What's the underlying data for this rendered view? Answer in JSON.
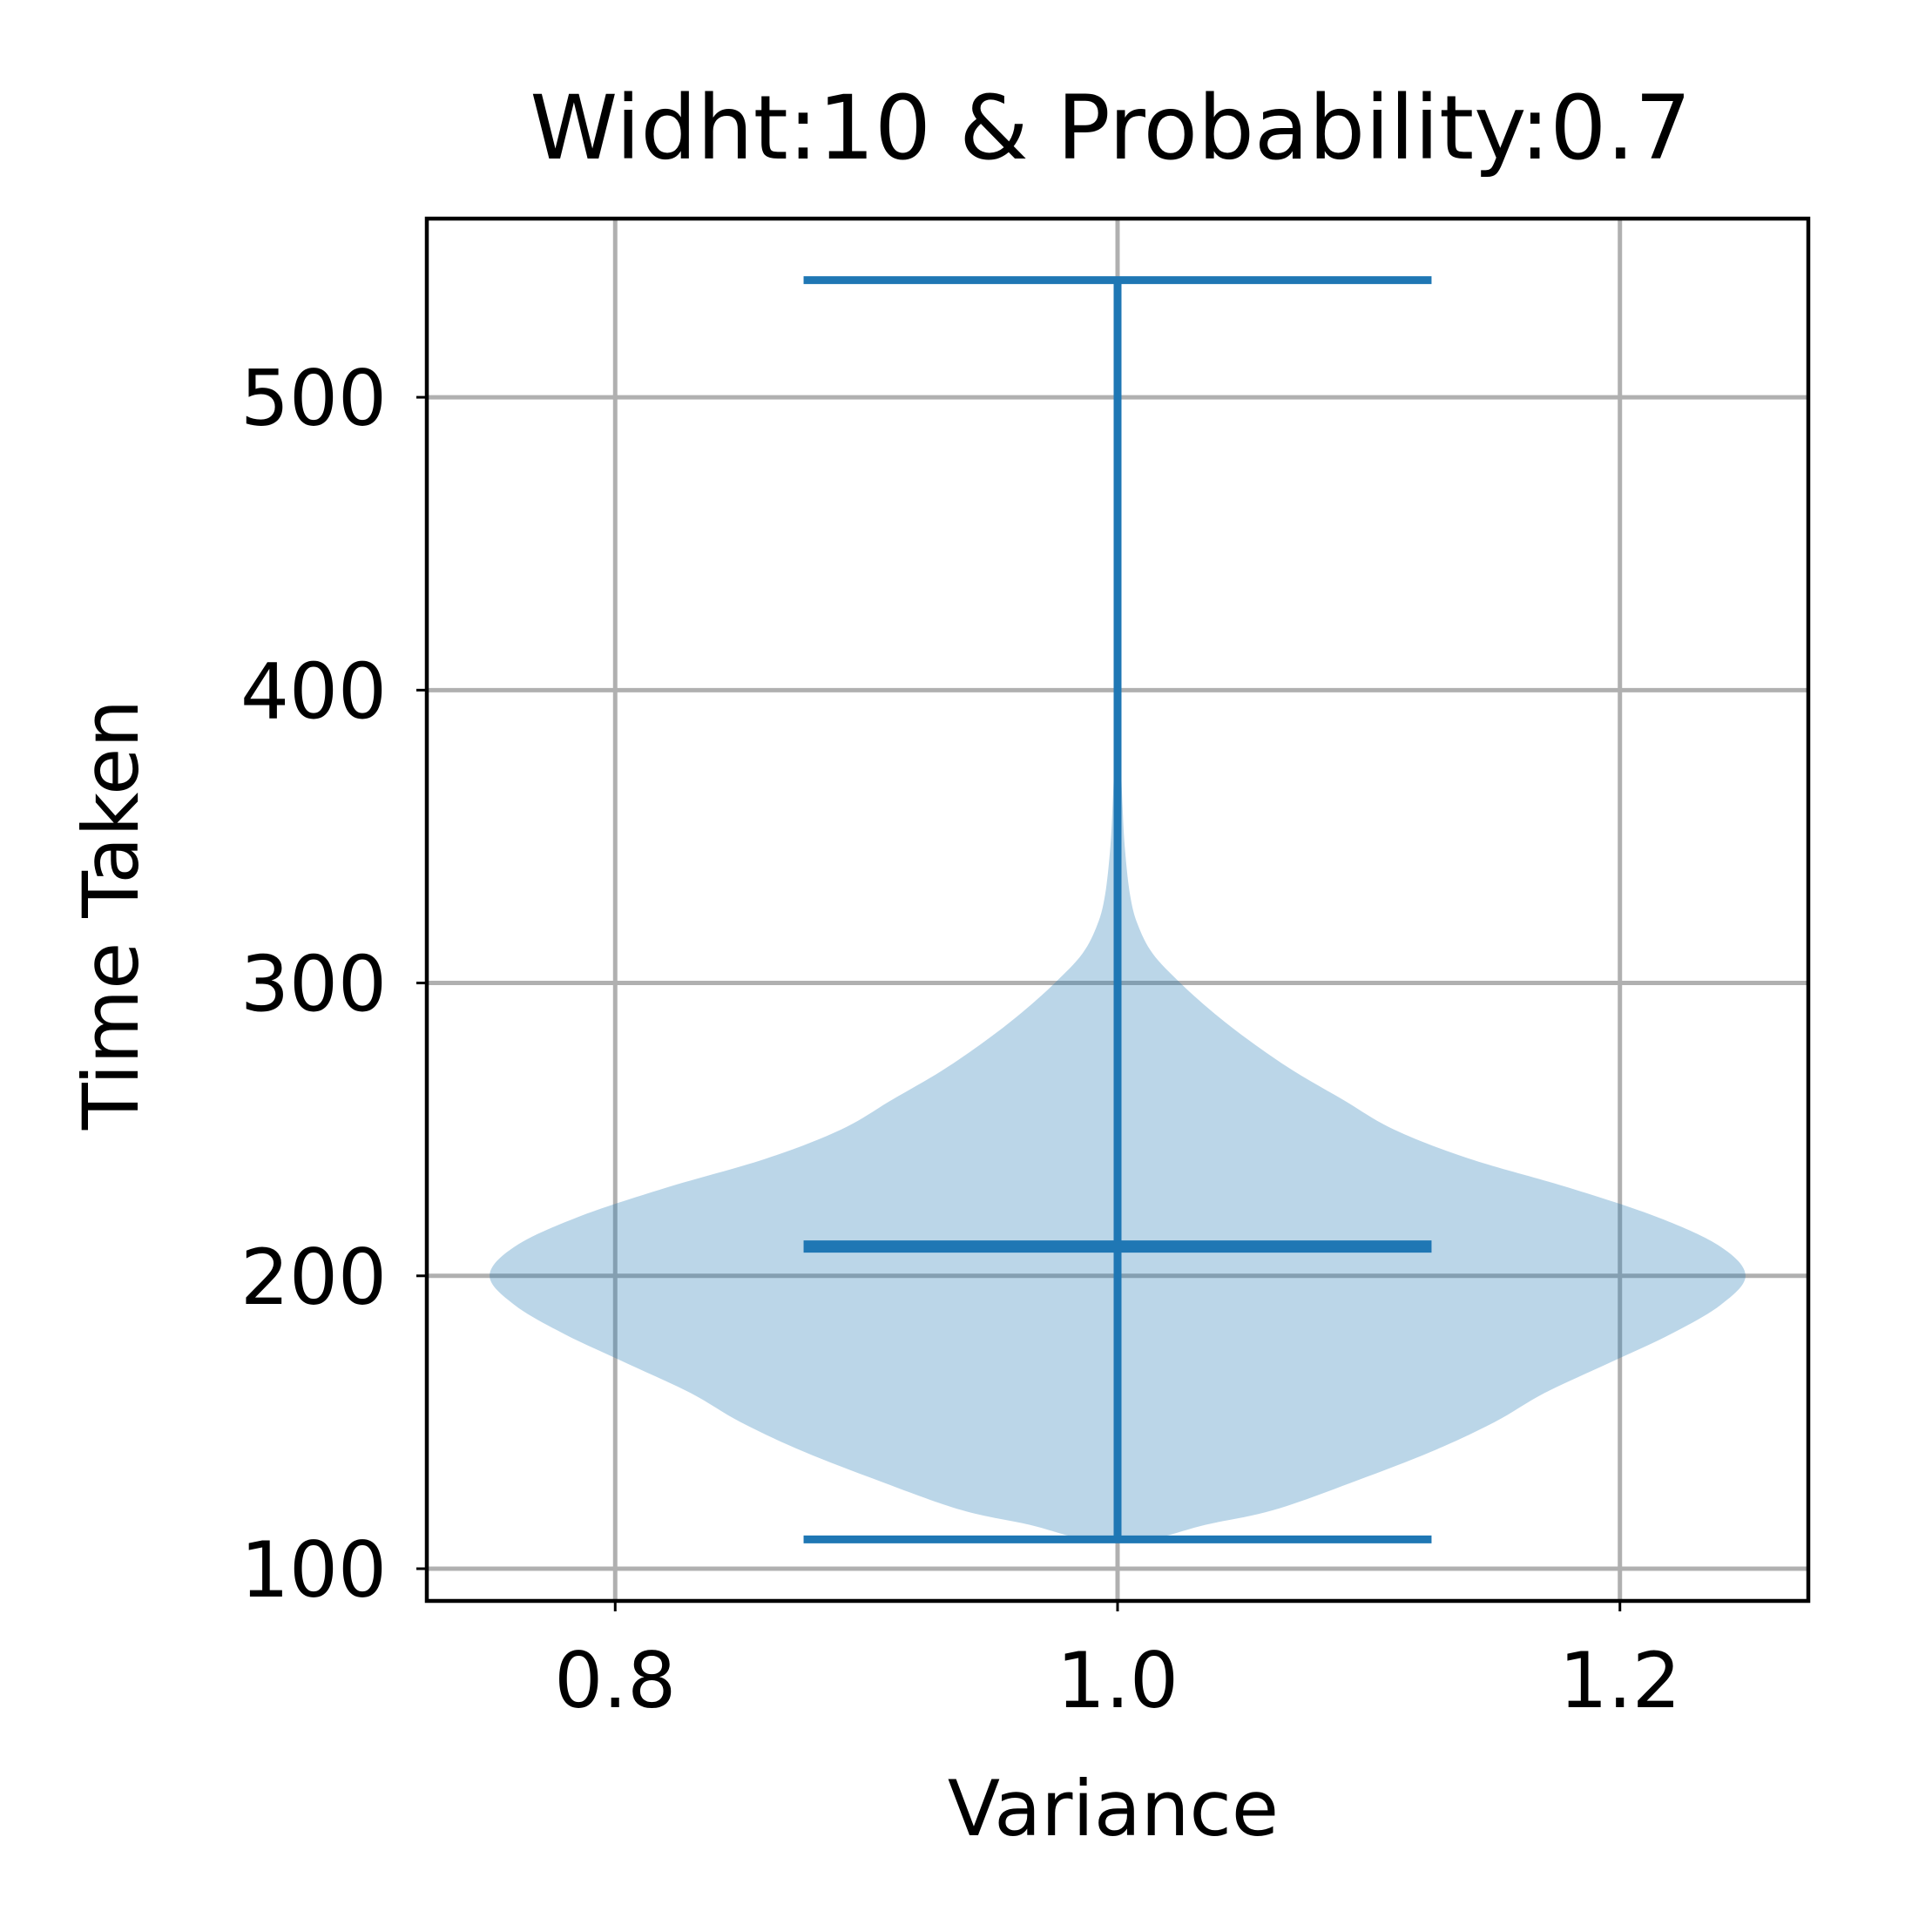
{
  "chart_data": {
    "type": "violin",
    "title": "Widht:10 & Probability:0.7",
    "xlabel": "Variance",
    "ylabel": "Time Taken",
    "xlim": [
      0.725,
      1.275
    ],
    "ylim": [
      89,
      561
    ],
    "xticks": [
      0.8,
      1.0,
      1.2
    ],
    "xtick_labels": [
      "0.8",
      "1.0",
      "1.2"
    ],
    "yticks": [
      100,
      200,
      300,
      400,
      500
    ],
    "ytick_labels": [
      "100",
      "200",
      "300",
      "400",
      "500"
    ],
    "grid": true,
    "legend": "none",
    "colors": {
      "body": "#1f77b4",
      "body_opacity": 0.3,
      "lines": "#1f77b4",
      "grid": "#b0b0b0",
      "axes": "#000000"
    },
    "violins": [
      {
        "position": 1.0,
        "min": 110,
        "median": 210,
        "max": 540,
        "cap_half_width": 0.125,
        "density_profile": [
          {
            "y": 110,
            "half_width": 0.012
          },
          {
            "y": 115,
            "half_width": 0.035
          },
          {
            "y": 120,
            "half_width": 0.062
          },
          {
            "y": 130,
            "half_width": 0.095
          },
          {
            "y": 140,
            "half_width": 0.125
          },
          {
            "y": 150,
            "half_width": 0.15
          },
          {
            "y": 160,
            "half_width": 0.17
          },
          {
            "y": 170,
            "half_width": 0.195
          },
          {
            "y": 180,
            "half_width": 0.22
          },
          {
            "y": 190,
            "half_width": 0.24
          },
          {
            "y": 200,
            "half_width": 0.25
          },
          {
            "y": 210,
            "half_width": 0.24
          },
          {
            "y": 220,
            "half_width": 0.215
          },
          {
            "y": 230,
            "half_width": 0.18
          },
          {
            "y": 240,
            "half_width": 0.14
          },
          {
            "y": 250,
            "half_width": 0.11
          },
          {
            "y": 260,
            "half_width": 0.09
          },
          {
            "y": 270,
            "half_width": 0.07
          },
          {
            "y": 280,
            "half_width": 0.053
          },
          {
            "y": 290,
            "half_width": 0.038
          },
          {
            "y": 300,
            "half_width": 0.025
          },
          {
            "y": 310,
            "half_width": 0.014
          },
          {
            "y": 320,
            "half_width": 0.008
          },
          {
            "y": 330,
            "half_width": 0.005
          },
          {
            "y": 345,
            "half_width": 0.003
          },
          {
            "y": 360,
            "half_width": 0.002
          },
          {
            "y": 380,
            "half_width": 0.0012
          },
          {
            "y": 400,
            "half_width": 0.0012
          },
          {
            "y": 420,
            "half_width": 0.0015
          },
          {
            "y": 440,
            "half_width": 0.0008
          },
          {
            "y": 470,
            "half_width": 0.0003
          },
          {
            "y": 500,
            "half_width": 0.0002
          },
          {
            "y": 540,
            "half_width": 0.0
          }
        ]
      }
    ]
  }
}
